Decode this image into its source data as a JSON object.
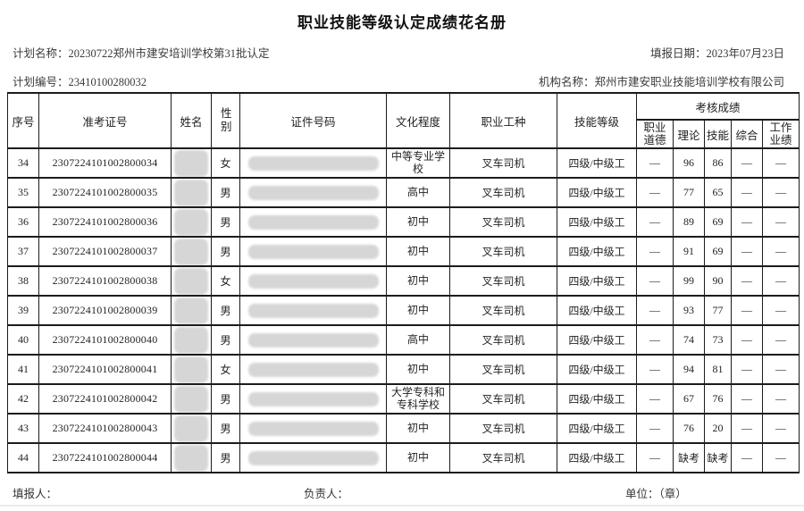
{
  "page": {
    "title": "职业技能等级认定成绩花名册"
  },
  "colors": {
    "text": "#2b2b2b",
    "border": "#1c1c1c",
    "redaction": "#d6d6d6",
    "background": "#ffffff"
  },
  "meta": {
    "plan_name": {
      "label": "计划名称：",
      "value": "20230722郑州市建安培训学校第31批认定"
    },
    "report_date": {
      "label": "填报日期：",
      "value": "2023年07月23日"
    },
    "plan_no": {
      "label": "计划编号：",
      "value": "23410100280032"
    },
    "org_name": {
      "label": "机构名称：",
      "value": "郑州市建安职业技能培训学校有限公司"
    }
  },
  "table": {
    "headers": {
      "seq": "序号",
      "exam_no": "准考证号",
      "name": "姓名",
      "gender": "性别",
      "id_no": "证件号码",
      "education": "文化程度",
      "occupation": "职业工种",
      "skill_level": "技能等级",
      "scores_group": "考核成绩",
      "score_ethics": "职业道德",
      "score_theory": "理论",
      "score_skill": "技能",
      "score_comprehensive": "综合",
      "score_work": "工作业绩"
    },
    "redacted_columns": [
      "name",
      "id_no"
    ],
    "rows": [
      {
        "seq": "34",
        "exam_no": "2307224101002800034",
        "gender": "女",
        "education": "中等专业学校",
        "occupation": "叉车司机",
        "skill_level": "四级/中级工",
        "ethics": "—",
        "theory": "96",
        "skill": "86",
        "comprehensive": "—",
        "work": "—"
      },
      {
        "seq": "35",
        "exam_no": "2307224101002800035",
        "gender": "男",
        "education": "高中",
        "occupation": "叉车司机",
        "skill_level": "四级/中级工",
        "ethics": "—",
        "theory": "77",
        "skill": "65",
        "comprehensive": "—",
        "work": "—"
      },
      {
        "seq": "36",
        "exam_no": "2307224101002800036",
        "gender": "男",
        "education": "初中",
        "occupation": "叉车司机",
        "skill_level": "四级/中级工",
        "ethics": "—",
        "theory": "89",
        "skill": "69",
        "comprehensive": "—",
        "work": "—"
      },
      {
        "seq": "37",
        "exam_no": "2307224101002800037",
        "gender": "男",
        "education": "初中",
        "occupation": "叉车司机",
        "skill_level": "四级/中级工",
        "ethics": "—",
        "theory": "91",
        "skill": "69",
        "comprehensive": "—",
        "work": "—"
      },
      {
        "seq": "38",
        "exam_no": "2307224101002800038",
        "gender": "女",
        "education": "初中",
        "occupation": "叉车司机",
        "skill_level": "四级/中级工",
        "ethics": "—",
        "theory": "99",
        "skill": "90",
        "comprehensive": "—",
        "work": "—"
      },
      {
        "seq": "39",
        "exam_no": "2307224101002800039",
        "gender": "男",
        "education": "初中",
        "occupation": "叉车司机",
        "skill_level": "四级/中级工",
        "ethics": "—",
        "theory": "93",
        "skill": "77",
        "comprehensive": "—",
        "work": "—"
      },
      {
        "seq": "40",
        "exam_no": "2307224101002800040",
        "gender": "男",
        "education": "高中",
        "occupation": "叉车司机",
        "skill_level": "四级/中级工",
        "ethics": "—",
        "theory": "74",
        "skill": "73",
        "comprehensive": "—",
        "work": "—"
      },
      {
        "seq": "41",
        "exam_no": "2307224101002800041",
        "gender": "女",
        "education": "初中",
        "occupation": "叉车司机",
        "skill_level": "四级/中级工",
        "ethics": "—",
        "theory": "94",
        "skill": "81",
        "comprehensive": "—",
        "work": "—"
      },
      {
        "seq": "42",
        "exam_no": "2307224101002800042",
        "gender": "男",
        "education": "大学专科和专科学校",
        "occupation": "叉车司机",
        "skill_level": "四级/中级工",
        "ethics": "—",
        "theory": "67",
        "skill": "76",
        "comprehensive": "—",
        "work": "—"
      },
      {
        "seq": "43",
        "exam_no": "2307224101002800043",
        "gender": "男",
        "education": "初中",
        "occupation": "叉车司机",
        "skill_level": "四级/中级工",
        "ethics": "—",
        "theory": "76",
        "skill": "20",
        "comprehensive": "—",
        "work": "—"
      },
      {
        "seq": "44",
        "exam_no": "2307224101002800044",
        "gender": "男",
        "education": "初中",
        "occupation": "叉车司机",
        "skill_level": "四级/中级工",
        "ethics": "—",
        "theory": "缺考",
        "skill": "缺考",
        "comprehensive": "—",
        "work": "—"
      }
    ]
  },
  "footer": {
    "filler_label": "填报人：",
    "manager_label": "负责人：",
    "unit_label": "单位：（章）"
  }
}
